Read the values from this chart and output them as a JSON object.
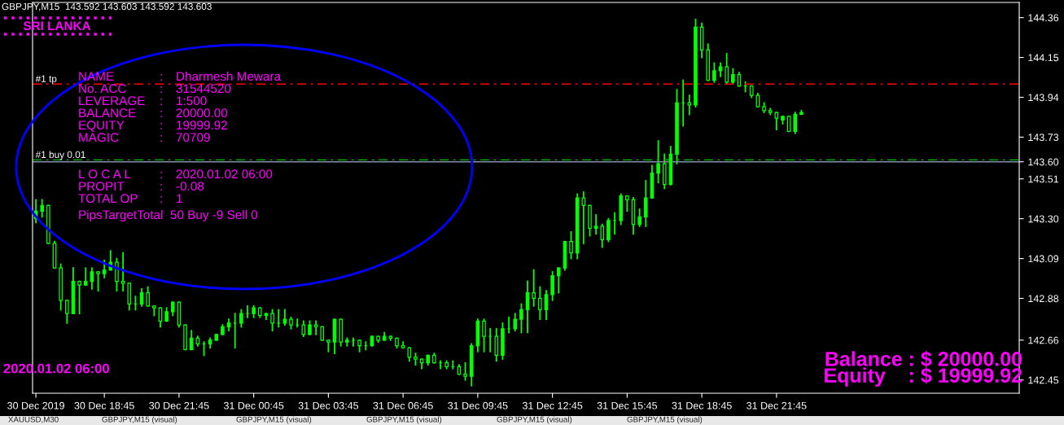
{
  "chart_data": {
    "type": "candlestick",
    "title": "GBPJPY,M15  143.592 143.603 143.592 143.603",
    "annotations": [
      "SRI LANKA",
      "NAME : Dharmesh Mewara",
      "No. ACC : 31544520",
      "LEVERAGE : 1:500",
      "BALANCE : 20000.00",
      "EQUITY : 19999.92",
      "MAGIC : 70709",
      "L O C A L : 2020.01.02 06:00",
      "PROPIT : -0.08",
      "TOTAL OP : 1",
      "PipsTargetTotal  50 Buy -9 Sell 0",
      "2020.01.02 06:00",
      "Balance : $ 20000.00",
      "Equity    : $ 19999.92",
      "XAUUSD,M30",
      "GBPJPY,M15 (visual)",
      "GBPJPY,M15 (visual)",
      "GBPJPY,M15 (visual)",
      "GBPJPY,M15 (visual)",
      "GBPJPY,M15 (visual)"
    ],
    "x": [
      "2019-12-30T16:00",
      "2019-12-30T16:15",
      "2019-12-30T16:30",
      "2019-12-30T16:45",
      "2019-12-30T17:00",
      "2019-12-30T17:15",
      "2019-12-30T17:30",
      "2019-12-30T17:45",
      "2019-12-30T18:00",
      "2019-12-30T18:15",
      "2019-12-30T18:30",
      "2019-12-30T18:45",
      "2019-12-30T19:00",
      "2019-12-30T19:15",
      "2019-12-30T19:30",
      "2019-12-30T19:45",
      "2019-12-30T20:00",
      "2019-12-30T20:15",
      "2019-12-30T20:30",
      "2019-12-30T20:45",
      "2019-12-30T21:00",
      "2019-12-30T21:15",
      "2019-12-30T21:30",
      "2019-12-30T21:45",
      "2019-12-30T22:00",
      "2019-12-30T22:15",
      "2019-12-30T22:30",
      "2019-12-30T22:45",
      "2019-12-30T23:00",
      "2019-12-30T23:15",
      "2019-12-30T23:30",
      "2019-12-30T23:45",
      "2019-12-31T00:00",
      "2019-12-31T00:15",
      "2019-12-31T00:30",
      "2019-12-31T00:45",
      "2019-12-31T01:00",
      "2019-12-31T01:15",
      "2019-12-31T01:30",
      "2019-12-31T01:45",
      "2019-12-31T02:00",
      "2019-12-31T02:15",
      "2019-12-31T02:30",
      "2019-12-31T02:45",
      "2019-12-31T03:00",
      "2019-12-31T03:15",
      "2019-12-31T03:30",
      "2019-12-31T03:45",
      "2019-12-31T04:00",
      "2019-12-31T04:15",
      "2019-12-31T04:30",
      "2019-12-31T04:45",
      "2019-12-31T05:00",
      "2019-12-31T05:15",
      "2019-12-31T05:30",
      "2019-12-31T05:45",
      "2019-12-31T06:00",
      "2019-12-31T06:15",
      "2019-12-31T06:30",
      "2019-12-31T06:45",
      "2019-12-31T07:00",
      "2019-12-31T07:15",
      "2019-12-31T07:30",
      "2019-12-31T07:45",
      "2019-12-31T08:00",
      "2019-12-31T08:15",
      "2019-12-31T08:30",
      "2019-12-31T08:45",
      "2019-12-31T09:00",
      "2019-12-31T09:15",
      "2019-12-31T09:30",
      "2019-12-31T09:45",
      "2019-12-31T10:00",
      "2019-12-31T10:15",
      "2019-12-31T10:30",
      "2019-12-31T10:45",
      "2019-12-31T11:00",
      "2019-12-31T11:15",
      "2019-12-31T11:30",
      "2019-12-31T11:45",
      "2019-12-31T12:00",
      "2019-12-31T12:15",
      "2019-12-31T12:30",
      "2019-12-31T12:45",
      "2019-12-31T13:00",
      "2019-12-31T13:15",
      "2019-12-31T13:30",
      "2019-12-31T13:45",
      "2019-12-31T14:00",
      "2019-12-31T14:15",
      "2019-12-31T14:30",
      "2019-12-31T14:45",
      "2019-12-31T15:00",
      "2019-12-31T15:15",
      "2019-12-31T15:30",
      "2019-12-31T15:45",
      "2019-12-31T16:00",
      "2019-12-31T16:15",
      "2019-12-31T16:30",
      "2019-12-31T16:45",
      "2019-12-31T17:00",
      "2019-12-31T17:15",
      "2019-12-31T17:30",
      "2019-12-31T17:45",
      "2019-12-31T18:00",
      "2019-12-31T18:15",
      "2019-12-31T18:30",
      "2019-12-31T18:45",
      "2019-12-31T19:00",
      "2019-12-31T19:15",
      "2019-12-31T19:30",
      "2019-12-31T19:45",
      "2019-12-31T20:00",
      "2019-12-31T20:15",
      "2019-12-31T20:30",
      "2019-12-31T20:45",
      "2019-12-31T21:00",
      "2019-12-31T21:15",
      "2019-12-31T21:30",
      "2019-12-31T21:45",
      "2019-12-31T22:00",
      "2019-12-31T22:15",
      "2019-12-31T22:30",
      "2019-12-31T22:45"
    ],
    "ohlc": [
      [
        143.3,
        143.4,
        143.28,
        143.34
      ],
      [
        143.34,
        143.4,
        143.31,
        143.37
      ],
      [
        143.37,
        143.37,
        143.17,
        143.17
      ],
      [
        143.17,
        143.18,
        143.04,
        143.04
      ],
      [
        143.04,
        143.06,
        142.82,
        142.87
      ],
      [
        142.87,
        142.87,
        142.75,
        142.8
      ],
      [
        142.8,
        143.04,
        142.8,
        142.97
      ],
      [
        142.97,
        142.97,
        142.8,
        142.95
      ],
      [
        142.95,
        143.04,
        142.95,
        142.97
      ],
      [
        142.97,
        143.04,
        142.93,
        143.02
      ],
      [
        143.02,
        143.02,
        142.92,
        143.01
      ],
      [
        143.01,
        143.08,
        142.99,
        143.03
      ],
      [
        143.03,
        143.13,
        143.03,
        143.07
      ],
      [
        143.07,
        143.09,
        142.92,
        142.97
      ],
      [
        142.97,
        143.12,
        142.92,
        142.96
      ],
      [
        142.96,
        142.96,
        142.82,
        142.85
      ],
      [
        142.85,
        142.89,
        142.82,
        142.85
      ],
      [
        142.85,
        142.93,
        142.84,
        142.91
      ],
      [
        142.91,
        142.94,
        142.84,
        142.84
      ],
      [
        142.84,
        142.84,
        142.79,
        142.83
      ],
      [
        142.83,
        142.83,
        142.73,
        142.76
      ],
      [
        142.76,
        142.83,
        142.76,
        142.81
      ],
      [
        142.81,
        142.86,
        142.79,
        142.86
      ],
      [
        142.86,
        142.86,
        142.73,
        142.74
      ],
      [
        142.74,
        142.74,
        142.61,
        142.61
      ],
      [
        142.61,
        142.71,
        142.61,
        142.67
      ],
      [
        142.67,
        142.68,
        142.63,
        142.64
      ],
      [
        142.64,
        142.65,
        142.58,
        142.64
      ],
      [
        142.64,
        142.67,
        142.62,
        142.66
      ],
      [
        142.66,
        142.69,
        142.66,
        142.69
      ],
      [
        142.69,
        142.74,
        142.69,
        142.73
      ],
      [
        142.73,
        142.77,
        142.71,
        142.75
      ],
      [
        142.75,
        142.8,
        142.62,
        142.75
      ],
      [
        142.75,
        142.82,
        142.73,
        142.8
      ],
      [
        142.8,
        142.84,
        142.78,
        142.8
      ],
      [
        142.8,
        142.84,
        142.78,
        142.83
      ],
      [
        142.83,
        142.83,
        142.78,
        142.79
      ],
      [
        142.79,
        142.8,
        142.77,
        142.8
      ],
      [
        142.8,
        142.82,
        142.71,
        142.75
      ],
      [
        142.75,
        142.82,
        142.73,
        142.75
      ],
      [
        142.75,
        142.82,
        142.74,
        142.77
      ],
      [
        142.77,
        142.78,
        142.72,
        142.74
      ],
      [
        142.74,
        142.77,
        142.73,
        142.74
      ],
      [
        142.74,
        142.76,
        142.68,
        142.69
      ],
      [
        142.69,
        142.76,
        142.69,
        142.74
      ],
      [
        142.74,
        142.76,
        142.69,
        142.73
      ],
      [
        142.73,
        142.73,
        142.66,
        142.66
      ],
      [
        142.66,
        142.66,
        142.6,
        142.65
      ],
      [
        142.65,
        142.77,
        142.59,
        142.77
      ],
      [
        142.77,
        142.77,
        142.63,
        142.65
      ],
      [
        142.65,
        142.67,
        142.63,
        142.66
      ],
      [
        142.66,
        142.67,
        142.63,
        142.66
      ],
      [
        142.66,
        142.66,
        142.6,
        142.63
      ],
      [
        142.63,
        142.65,
        142.61,
        142.63
      ],
      [
        142.63,
        142.68,
        142.63,
        142.68
      ],
      [
        142.68,
        142.68,
        142.65,
        142.66
      ],
      [
        142.66,
        142.7,
        142.66,
        142.68
      ],
      [
        142.68,
        142.68,
        142.66,
        142.67
      ],
      [
        142.67,
        142.67,
        142.62,
        142.63
      ],
      [
        142.63,
        142.65,
        142.62,
        142.62
      ],
      [
        142.62,
        142.62,
        142.55,
        142.57
      ],
      [
        142.57,
        142.59,
        142.53,
        142.56
      ],
      [
        142.56,
        142.56,
        142.51,
        142.54
      ],
      [
        142.54,
        142.58,
        142.53,
        142.58
      ],
      [
        142.58,
        142.59,
        142.54,
        142.54
      ],
      [
        142.54,
        142.55,
        142.51,
        142.54
      ],
      [
        142.54,
        142.55,
        142.51,
        142.52
      ],
      [
        142.52,
        142.55,
        142.51,
        142.52
      ],
      [
        142.52,
        142.53,
        142.48,
        142.48
      ],
      [
        142.48,
        142.54,
        142.45,
        142.47
      ],
      [
        142.47,
        142.64,
        142.42,
        142.63
      ],
      [
        142.63,
        142.77,
        142.6,
        142.76
      ],
      [
        142.76,
        142.77,
        142.6,
        142.68
      ],
      [
        142.68,
        142.72,
        142.6,
        142.68
      ],
      [
        142.68,
        142.72,
        142.55,
        142.58
      ],
      [
        142.58,
        142.75,
        142.56,
        142.72
      ],
      [
        142.72,
        142.78,
        142.7,
        142.72
      ],
      [
        142.72,
        142.8,
        142.71,
        142.77
      ],
      [
        142.77,
        142.85,
        142.7,
        142.82
      ],
      [
        142.82,
        142.97,
        142.7,
        142.91
      ],
      [
        142.91,
        143.03,
        142.84,
        142.88
      ],
      [
        142.88,
        142.94,
        142.77,
        142.82
      ],
      [
        142.82,
        142.92,
        142.77,
        142.9
      ],
      [
        142.9,
        143.02,
        142.87,
        143.0
      ],
      [
        143.0,
        143.04,
        142.91,
        143.04
      ],
      [
        143.04,
        143.18,
        143.03,
        143.18
      ],
      [
        143.18,
        143.23,
        143.09,
        143.12
      ],
      [
        143.12,
        143.43,
        143.09,
        143.41
      ],
      [
        143.41,
        143.44,
        143.17,
        143.37
      ],
      [
        143.37,
        143.37,
        143.21,
        143.25
      ],
      [
        143.25,
        143.32,
        143.22,
        143.26
      ],
      [
        143.26,
        143.27,
        143.15,
        143.19
      ],
      [
        143.19,
        143.3,
        143.18,
        143.29
      ],
      [
        143.29,
        143.33,
        143.22,
        143.29
      ],
      [
        143.29,
        143.43,
        143.27,
        143.42
      ],
      [
        143.42,
        143.42,
        143.34,
        143.4
      ],
      [
        143.4,
        143.41,
        143.22,
        143.27
      ],
      [
        143.27,
        143.35,
        143.26,
        143.31
      ],
      [
        143.31,
        143.5,
        143.26,
        143.41
      ],
      [
        143.41,
        143.58,
        143.41,
        143.54
      ],
      [
        143.54,
        143.71,
        143.49,
        143.59
      ],
      [
        143.59,
        143.64,
        143.46,
        143.48
      ],
      [
        143.48,
        143.68,
        143.48,
        143.64
      ],
      [
        143.64,
        143.98,
        143.59,
        143.91
      ],
      [
        143.91,
        144.03,
        143.79,
        143.91
      ],
      [
        143.91,
        143.95,
        143.85,
        143.9
      ],
      [
        143.9,
        144.35,
        143.89,
        144.31
      ],
      [
        144.31,
        144.33,
        144.15,
        144.19
      ],
      [
        144.19,
        144.22,
        144.03,
        144.03
      ],
      [
        144.03,
        144.12,
        144.02,
        144.08
      ],
      [
        144.08,
        144.12,
        144.05,
        144.1
      ],
      [
        144.1,
        144.17,
        144.01,
        144.02
      ],
      [
        144.02,
        144.09,
        144.01,
        144.06
      ],
      [
        144.06,
        144.07,
        144.0,
        144.0
      ],
      [
        144.0,
        144.02,
        143.97,
        144.0
      ],
      [
        144.0,
        144.0,
        143.94,
        143.95
      ],
      [
        143.95,
        143.96,
        143.89,
        143.89
      ],
      [
        143.89,
        143.91,
        143.86,
        143.87
      ],
      [
        143.87,
        143.88,
        143.85,
        143.86
      ],
      [
        143.86,
        143.86,
        143.77,
        143.83
      ],
      [
        143.82,
        143.84,
        143.8,
        143.84
      ],
      [
        143.84,
        143.84,
        143.76,
        143.76
      ],
      [
        143.76,
        143.86,
        143.75,
        143.85
      ],
      [
        143.85,
        143.87,
        143.85,
        143.86
      ]
    ],
    "color": "#00ff00",
    "xlim": [
      "2019-12-30T15:52",
      "2020-01-01T07:30"
    ],
    "xticks": [
      {
        "value": "2019-12-30T16:00",
        "label": "30 Dec 2019"
      },
      {
        "value": "2019-12-30T18:45",
        "label": "30 Dec 18:45"
      },
      {
        "value": "2019-12-30T21:45",
        "label": "30 Dec 21:45"
      },
      {
        "value": "2019-12-31T00:45",
        "label": "31 Dec 00:45"
      },
      {
        "value": "2019-12-31T03:45",
        "label": "31 Dec 03:45"
      },
      {
        "value": "2019-12-31T06:45",
        "label": "31 Dec 06:45"
      },
      {
        "value": "2019-12-31T09:45",
        "label": "31 Dec 09:45"
      },
      {
        "value": "2019-12-31T12:45",
        "label": "31 Dec 12:45"
      },
      {
        "value": "2019-12-31T15:45",
        "label": "31 Dec 15:45"
      },
      {
        "value": "2019-12-31T18:45",
        "label": "31 Dec 18:45"
      },
      {
        "value": "2019-12-31T21:45",
        "label": "31 Dec 21:45"
      }
    ],
    "ylim": [
      142.38,
      144.44
    ],
    "yticks": [
      142.45,
      142.66,
      142.88,
      143.09,
      {
        "value": 143.3,
        "label": "143.30"
      },
      143.51,
      {
        "value": 143.6,
        "label": "143.60"
      },
      143.73,
      143.94,
      144.15,
      144.36
    ],
    "ref_lines": [
      {
        "axis": "y",
        "value": 144.01,
        "label": "#1 tp",
        "color": "#ff0000",
        "line_style": "dashed"
      },
      {
        "axis": "y",
        "value": 143.61,
        "label": "#1 buy 0.01",
        "color": "#00c000",
        "line_style": "dashed"
      },
      {
        "axis": "y",
        "value": 143.6,
        "color": "#8090a0",
        "line_style": "solid"
      }
    ],
    "grid": false,
    "legend": false
  }
}
